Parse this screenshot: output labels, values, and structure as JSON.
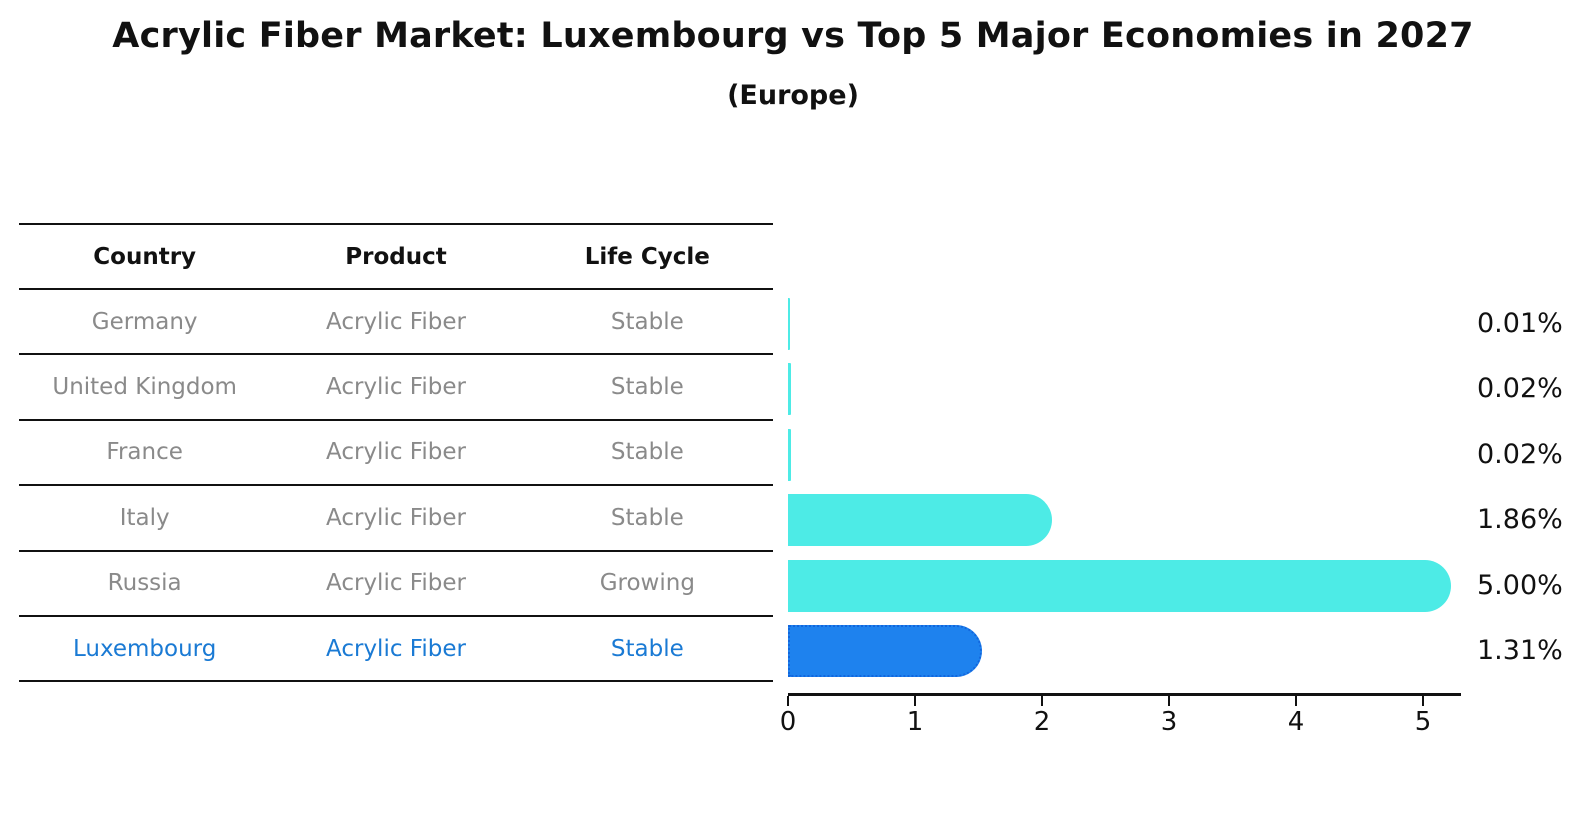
{
  "title": "Acrylic Fiber Market: Luxembourg vs Top 5 Major Economies in 2027",
  "subtitle": "(Europe)",
  "table": {
    "headers": [
      "Country",
      "Product",
      "Life Cycle"
    ],
    "rows": [
      {
        "country": "Germany",
        "product": "Acrylic Fiber",
        "life_cycle": "Stable",
        "highlight": false
      },
      {
        "country": "United Kingdom",
        "product": "Acrylic Fiber",
        "life_cycle": "Stable",
        "highlight": false
      },
      {
        "country": "France",
        "product": "Acrylic Fiber",
        "life_cycle": "Stable",
        "highlight": false
      },
      {
        "country": "Italy",
        "product": "Acrylic Fiber",
        "life_cycle": "Stable",
        "highlight": false
      },
      {
        "country": "Russia",
        "product": "Acrylic Fiber",
        "life_cycle": "Growing",
        "highlight": false
      },
      {
        "country": "Luxembourg",
        "product": "Acrylic Fiber",
        "life_cycle": "Stable",
        "highlight": true
      }
    ]
  },
  "chart_data": {
    "type": "bar",
    "orientation": "horizontal",
    "title": "Acrylic Fiber Market: Luxembourg vs Top 5 Major Economies in 2027",
    "subtitle": "(Europe)",
    "categories": [
      "Germany",
      "United Kingdom",
      "France",
      "Italy",
      "Russia",
      "Luxembourg"
    ],
    "values": [
      0.01,
      0.02,
      0.02,
      1.86,
      5.0,
      1.31
    ],
    "value_labels": [
      "0.01%",
      "0.02%",
      "0.02%",
      "1.86%",
      "5.00%",
      "1.31%"
    ],
    "x_ticks": [
      "0",
      "1",
      "2",
      "3",
      "4",
      "5"
    ],
    "xlim": [
      0,
      5.3
    ],
    "grid": false,
    "legend": false,
    "highlight_index": 5
  },
  "colors": {
    "bar_default": "#4DEBE6",
    "bar_highlight": "#1E82EE",
    "bar_highlight_border": "#1266DD",
    "highlight_text": "#1A7AD4",
    "table_text": "#8A8A8A",
    "heading_text": "#111111"
  }
}
